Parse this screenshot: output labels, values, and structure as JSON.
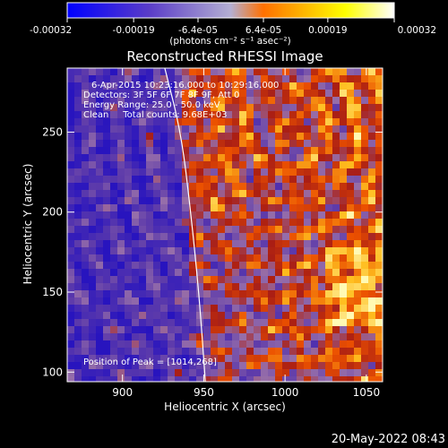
{
  "colorbar": {
    "tick_labels": [
      "-0.00032",
      "-0.00019",
      "-6.4e-05",
      "6.4e-05",
      "0.00019",
      "0.00032"
    ],
    "tick_values": [
      -0.00032,
      -0.00019,
      -6.4e-05,
      6.4e-05,
      0.00019,
      0.00032
    ],
    "range": [
      -0.00032,
      0.00032
    ],
    "unit_label": "(photons cm⁻² s⁻¹ asec⁻²)",
    "colors": [
      "#0000ff",
      "#5a3cc8",
      "#b4afd2",
      "#ff7000",
      "#ffff00",
      "#ffffff"
    ]
  },
  "image": {
    "title": "Reconstructed RHESSI Image",
    "info_lines": [
      "6-Apr-2015 10:23:16.000 to 10:29:16.000",
      "Detectors: 3F 5F 6F 7F 8F 9F, Att 0",
      "Energy Range: 25.0 - 50.0 keV",
      "Clean     Total counts: 9.68E+03"
    ],
    "peak_label": "Position of Peak = [1014,268]",
    "timestamp": "20-May-2022 08:43",
    "xlabel": "Heliocentric X (arcsec)",
    "ylabel": "Heliocentric Y (arcsec)",
    "xlim": [
      866,
      1060
    ],
    "ylim": [
      94,
      290
    ],
    "x_ticks": [
      900,
      950,
      1000,
      1050
    ],
    "y_ticks": [
      100,
      150,
      200,
      250
    ],
    "x_tick_labels": [
      "900",
      "950",
      "1000",
      "1050"
    ],
    "y_tick_labels": [
      "100",
      "150",
      "200",
      "250"
    ],
    "limb": {
      "color": "#ffffff",
      "points": [
        [
          926,
          290
        ],
        [
          936,
          250
        ],
        [
          942,
          200
        ],
        [
          947,
          150
        ],
        [
          951,
          94
        ]
      ]
    }
  }
}
